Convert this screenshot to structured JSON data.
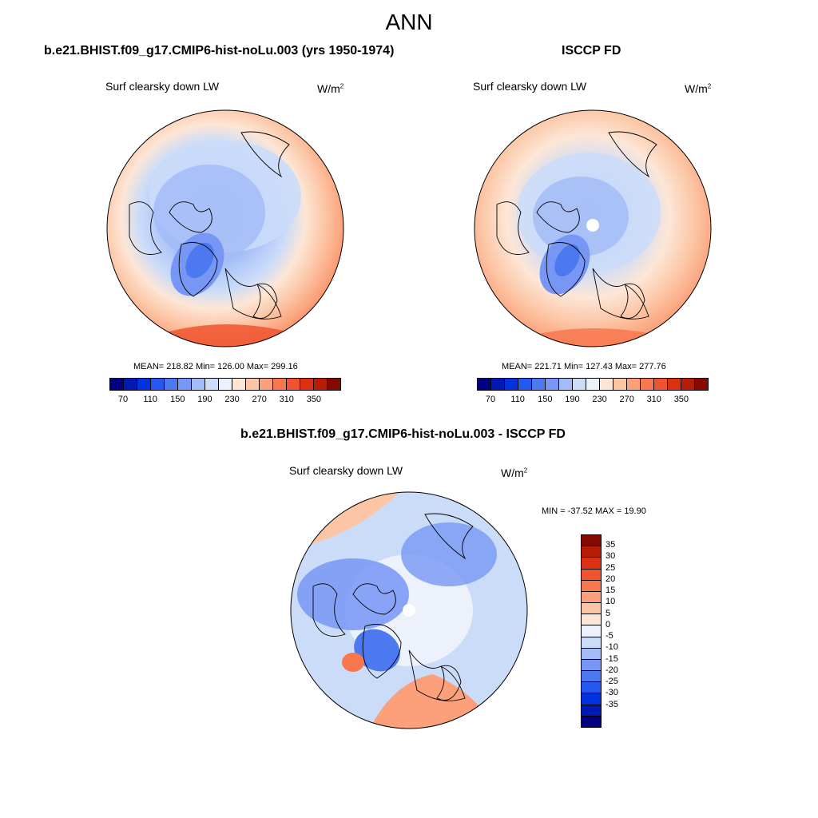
{
  "figure_title": "ANN",
  "panels": [
    {
      "title": "b.e21.BHIST.f09_g17.CMIP6-hist-noLu.003 (yrs 1950-1974)",
      "variable": "Surf clearsky down LW",
      "units_base": "W/m",
      "units_exp": "2",
      "stats": "MEAN= 218.82  Min= 126.00  Max= 299.16",
      "mean": 218.82,
      "min": 126.0,
      "max": 299.16
    },
    {
      "title": "ISCCP FD",
      "variable": "Surf clearsky down LW",
      "units_base": "W/m",
      "units_exp": "2",
      "stats": "MEAN= 221.71  Min= 127.43  Max= 277.76",
      "mean": 221.71,
      "min": 127.43,
      "max": 277.76
    },
    {
      "title": "b.e21.BHIST.f09_g17.CMIP6-hist-noLu.003 - ISCCP FD",
      "variable": "Surf clearsky down LW",
      "units_base": "W/m",
      "units_exp": "2",
      "stats": "MIN = -37.52 MAX =  19.90",
      "min": -37.52,
      "max": 19.9
    }
  ],
  "colorbar_abs": {
    "orientation": "horizontal",
    "tick_labels": [
      "70",
      "110",
      "150",
      "190",
      "230",
      "270",
      "310",
      "350"
    ],
    "colors": [
      "#000080",
      "#0019b3",
      "#0033dd",
      "#2558ee",
      "#4c78f0",
      "#7897f5",
      "#a3bcf7",
      "#cbdcf9",
      "#ecf1fb",
      "#fde6d6",
      "#fcc6a6",
      "#fba07a",
      "#f7784f",
      "#f0532f",
      "#dd3012",
      "#b71c05",
      "#840a00"
    ]
  },
  "colorbar_diff": {
    "orientation": "vertical",
    "tick_labels": [
      "35",
      "30",
      "25",
      "20",
      "15",
      "10",
      "5",
      "0",
      "-5",
      "-10",
      "-15",
      "-20",
      "-25",
      "-30",
      "-35"
    ],
    "colors": [
      "#840a00",
      "#b71c05",
      "#dd3012",
      "#f0532f",
      "#f7784f",
      "#fba07a",
      "#fcc6a6",
      "#fde6d6",
      "#ecf1fb",
      "#cbdcf9",
      "#a3bcf7",
      "#7897f5",
      "#4c78f0",
      "#2558ee",
      "#0033dd",
      "#0019b3",
      "#000080"
    ]
  },
  "map": {
    "projection": "north polar stereographic",
    "background": "#ffffff",
    "coastline": "#000000"
  }
}
